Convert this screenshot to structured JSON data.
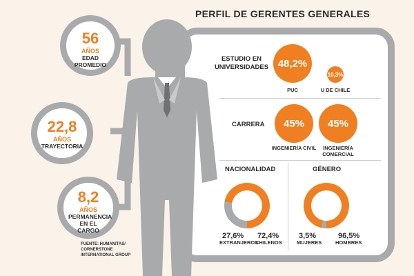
{
  "title": "PERFIL DE GERENTES GENERALES",
  "stats": [
    {
      "value": "56",
      "unit": "AÑOS",
      "label": "EDAD PROMEDIO"
    },
    {
      "value": "22,8",
      "unit": "AÑOS",
      "label": "TRAYECTORIA"
    },
    {
      "value": "8,2",
      "unit": "AÑOS",
      "label": "PERMANENCIA EN EL CARGO"
    }
  ],
  "source": "FUENTE: HUMANITAS/ CORNERSTONE INTERNATIONAL GROUP",
  "studies": {
    "label": "ESTUDIO EN UNIVERSIDADES",
    "items": [
      {
        "value": "48,2%",
        "name": "PUC"
      },
      {
        "value": "10,3%",
        "name": "U DE CHILE"
      }
    ]
  },
  "career": {
    "label": "CARRERA",
    "items": [
      {
        "value": "45%",
        "name": "INGENIERÍA CIVIL"
      },
      {
        "value": "45%",
        "name": "INGENIERÍA COMERCIAL"
      }
    ]
  },
  "nationality": {
    "label": "NACIONALIDAD",
    "a": {
      "value": "27,6%",
      "name": "EXTRANJEROS"
    },
    "b": {
      "value": "72,4%",
      "name": "CHILENOS"
    }
  },
  "gender": {
    "label": "GÉNERO",
    "a": {
      "value": "3,5%",
      "name": "MUJERES"
    },
    "b": {
      "value": "96,5%",
      "name": "HOMBRES"
    }
  },
  "colors": {
    "accent": "#f07f22",
    "gray": "#a8aaab"
  },
  "chart_data": [
    {
      "type": "pie",
      "title": "NACIONALIDAD",
      "categories": [
        "EXTRANJEROS",
        "CHILENOS"
      ],
      "values": [
        27.6,
        72.4
      ]
    },
    {
      "type": "pie",
      "title": "GÉNERO",
      "categories": [
        "MUJERES",
        "HOMBRES"
      ],
      "values": [
        3.5,
        96.5
      ]
    }
  ]
}
